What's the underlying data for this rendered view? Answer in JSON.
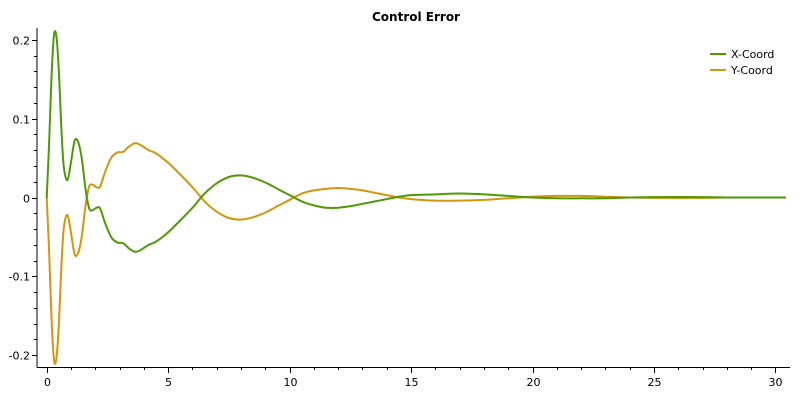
{
  "chart_data": {
    "type": "line",
    "title": "Control Error",
    "xlabel": "",
    "ylabel": "",
    "xlim": [
      -0.4,
      30.6
    ],
    "ylim": [
      -0.215,
      0.215
    ],
    "x_ticks": [
      0,
      5,
      10,
      15,
      20,
      25,
      30
    ],
    "x_tick_labels": [
      "0",
      "5",
      "10",
      "15",
      "20",
      "25",
      "30"
    ],
    "y_ticks": [
      0.2,
      0.1,
      0,
      -0.1,
      -0.2
    ],
    "y_tick_labels": [
      "0.2",
      "0.1",
      "0",
      "-0.1",
      "-0.2"
    ],
    "grid": false,
    "legend_position": "top-right",
    "series": [
      {
        "name": "X-Coord",
        "color": "#4e9a06",
        "points": [
          [
            0.0,
            0.0
          ],
          [
            0.1,
            0.07
          ],
          [
            0.2,
            0.155
          ],
          [
            0.3,
            0.206
          ],
          [
            0.4,
            0.204
          ],
          [
            0.5,
            0.16
          ],
          [
            0.6,
            0.09
          ],
          [
            0.7,
            0.04
          ],
          [
            0.85,
            0.022
          ],
          [
            1.0,
            0.045
          ],
          [
            1.15,
            0.072
          ],
          [
            1.3,
            0.07
          ],
          [
            1.45,
            0.048
          ],
          [
            1.6,
            0.01
          ],
          [
            1.75,
            -0.014
          ],
          [
            1.9,
            -0.016
          ],
          [
            2.05,
            -0.013
          ],
          [
            2.2,
            -0.014
          ],
          [
            2.4,
            -0.032
          ],
          [
            2.65,
            -0.05
          ],
          [
            2.9,
            -0.057
          ],
          [
            3.15,
            -0.058
          ],
          [
            3.4,
            -0.065
          ],
          [
            3.65,
            -0.069
          ],
          [
            3.9,
            -0.066
          ],
          [
            4.2,
            -0.06
          ],
          [
            4.5,
            -0.056
          ],
          [
            5.0,
            -0.044
          ],
          [
            5.5,
            -0.029
          ],
          [
            6.0,
            -0.013
          ],
          [
            6.5,
            0.005
          ],
          [
            7.0,
            0.018
          ],
          [
            7.5,
            0.026
          ],
          [
            8.0,
            0.028
          ],
          [
            8.5,
            0.025
          ],
          [
            9.0,
            0.019
          ],
          [
            9.5,
            0.011
          ],
          [
            10.0,
            0.003
          ],
          [
            10.5,
            -0.005
          ],
          [
            11.0,
            -0.01
          ],
          [
            11.5,
            -0.013
          ],
          [
            12.0,
            -0.013
          ],
          [
            12.5,
            -0.011
          ],
          [
            13.0,
            -0.008
          ],
          [
            13.5,
            -0.005
          ],
          [
            14.0,
            -0.002
          ],
          [
            14.5,
            0.001
          ],
          [
            15.0,
            0.003
          ],
          [
            16.0,
            0.004
          ],
          [
            17.0,
            0.005
          ],
          [
            18.0,
            0.004
          ],
          [
            19.0,
            0.002
          ],
          [
            20.0,
            0.0
          ],
          [
            21.0,
            -0.001
          ],
          [
            22.0,
            -0.001
          ],
          [
            23.0,
            -0.001
          ],
          [
            24.0,
            0.0
          ],
          [
            25.0,
            0.0005
          ],
          [
            26.0,
            0.0007
          ],
          [
            27.0,
            0.0005
          ],
          [
            28.0,
            0.0
          ],
          [
            29.0,
            0.0
          ],
          [
            30.0,
            0.0
          ],
          [
            30.4,
            0.0
          ]
        ]
      },
      {
        "name": "Y-Coord",
        "color": "#d4960f",
        "points": [
          [
            0.0,
            0.0
          ],
          [
            0.1,
            -0.07
          ],
          [
            0.2,
            -0.155
          ],
          [
            0.3,
            -0.206
          ],
          [
            0.4,
            -0.204
          ],
          [
            0.5,
            -0.16
          ],
          [
            0.6,
            -0.09
          ],
          [
            0.7,
            -0.04
          ],
          [
            0.85,
            -0.022
          ],
          [
            1.0,
            -0.045
          ],
          [
            1.15,
            -0.072
          ],
          [
            1.3,
            -0.07
          ],
          [
            1.45,
            -0.048
          ],
          [
            1.6,
            -0.01
          ],
          [
            1.75,
            0.014
          ],
          [
            1.9,
            0.016
          ],
          [
            2.05,
            0.013
          ],
          [
            2.2,
            0.014
          ],
          [
            2.4,
            0.032
          ],
          [
            2.65,
            0.05
          ],
          [
            2.9,
            0.057
          ],
          [
            3.15,
            0.058
          ],
          [
            3.4,
            0.065
          ],
          [
            3.65,
            0.069
          ],
          [
            3.9,
            0.066
          ],
          [
            4.2,
            0.06
          ],
          [
            4.5,
            0.056
          ],
          [
            5.0,
            0.044
          ],
          [
            5.5,
            0.029
          ],
          [
            6.0,
            0.013
          ],
          [
            6.5,
            -0.005
          ],
          [
            7.0,
            -0.018
          ],
          [
            7.5,
            -0.026
          ],
          [
            8.0,
            -0.028
          ],
          [
            8.5,
            -0.025
          ],
          [
            9.0,
            -0.019
          ],
          [
            9.5,
            -0.011
          ],
          [
            10.0,
            -0.003
          ],
          [
            10.5,
            0.005
          ],
          [
            11.0,
            0.009
          ],
          [
            11.5,
            0.011
          ],
          [
            12.0,
            0.012
          ],
          [
            12.5,
            0.011
          ],
          [
            13.0,
            0.009
          ],
          [
            13.5,
            0.006
          ],
          [
            14.0,
            0.003
          ],
          [
            14.5,
            0.0
          ],
          [
            15.0,
            -0.002
          ],
          [
            16.0,
            -0.004
          ],
          [
            17.0,
            -0.004
          ],
          [
            18.0,
            -0.003
          ],
          [
            19.0,
            -0.001
          ],
          [
            20.0,
            0.001
          ],
          [
            21.0,
            0.002
          ],
          [
            22.0,
            0.002
          ],
          [
            23.0,
            0.001
          ],
          [
            24.0,
            0.0
          ],
          [
            25.0,
            -0.0005
          ],
          [
            26.0,
            -0.0007
          ],
          [
            27.0,
            -0.0005
          ],
          [
            28.0,
            0.0
          ],
          [
            29.0,
            0.0
          ],
          [
            30.0,
            0.0
          ],
          [
            30.4,
            0.0
          ]
        ]
      }
    ]
  }
}
